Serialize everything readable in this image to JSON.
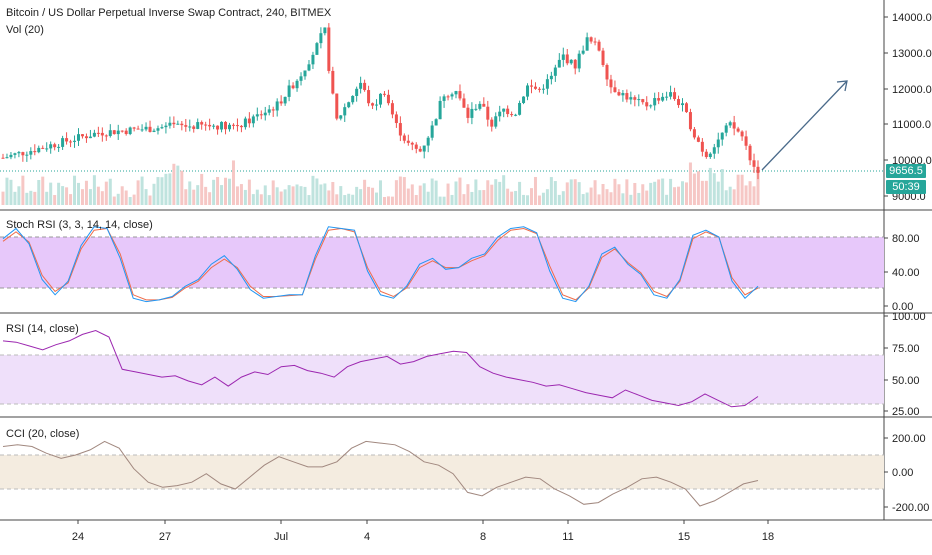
{
  "main_title": "Bitcoin / US Dollar Perpetual Inverse Swap Contract, 240, BITMEX",
  "volume_label": "Vol (20)",
  "price_badge": "9656.5",
  "countdown_badge": "50:39",
  "colors": {
    "up": "#26a69a",
    "down": "#ef5350",
    "stoch_k": "#2196f3",
    "stoch_d": "#ef6c4a",
    "rsi_line": "#9c27b0",
    "cci_line": "#a1887f",
    "band_rsi": "#efe0fa",
    "band_stoch": "#e7c8fa",
    "band_cci": "#f4ece0",
    "arrow": "#4a6a8a"
  },
  "panes": {
    "price": {
      "y_ticks": [
        "14000.0",
        "13000.0",
        "12000.0",
        "11000.0",
        "10000.0",
        "9000.0"
      ]
    },
    "stoch": {
      "label": "Stoch RSI (3, 3, 14, 14, close)",
      "y_ticks": [
        "80.00",
        "40.00",
        "0.00"
      ]
    },
    "rsi": {
      "label": "RSI (14, close)",
      "y_ticks": [
        "100.00",
        "75.00",
        "50.00",
        "25.00"
      ]
    },
    "cci": {
      "label": "CCI (20, close)",
      "y_ticks": [
        "200.00",
        "0.00",
        "-200.00"
      ]
    }
  },
  "x_axis": [
    "24",
    "27",
    "Jul",
    "4",
    "8",
    "11",
    "15",
    "18"
  ],
  "chart_data": [
    {
      "type": "candlestick",
      "title": "Bitcoin / US Dollar Perpetual Inverse Swap Contract, 240, BITMEX",
      "y_range": [
        9000,
        14000
      ],
      "x_labels": [
        "24",
        "27",
        "Jul",
        "4",
        "8",
        "11",
        "15",
        "18"
      ],
      "close_path": [
        [
          0,
          10050
        ],
        [
          8,
          10700
        ],
        [
          14,
          10850
        ],
        [
          20,
          10900
        ],
        [
          23,
          11400
        ],
        [
          25,
          12200
        ],
        [
          26.5,
          13000
        ],
        [
          27,
          13400
        ],
        [
          27.5,
          12000
        ],
        [
          28,
          11000
        ],
        [
          29,
          11500
        ],
        [
          30,
          12000
        ],
        [
          31,
          11300
        ],
        [
          32,
          11800
        ],
        [
          33,
          10900
        ],
        [
          34,
          10400
        ],
        [
          35,
          10200
        ],
        [
          36,
          10800
        ],
        [
          37,
          11700
        ],
        [
          38,
          11800
        ],
        [
          39,
          11100
        ],
        [
          40,
          11500
        ],
        [
          41,
          10900
        ],
        [
          42,
          11300
        ],
        [
          43,
          11200
        ],
        [
          44,
          11900
        ],
        [
          45,
          11800
        ],
        [
          46,
          12100
        ],
        [
          47,
          12700
        ],
        [
          48,
          12400
        ],
        [
          49,
          13100
        ],
        [
          50,
          12900
        ],
        [
          51,
          11900
        ],
        [
          52,
          11700
        ],
        [
          53,
          11500
        ],
        [
          54,
          11400
        ],
        [
          55,
          11600
        ],
        [
          56,
          11700
        ],
        [
          57,
          11400
        ],
        [
          58,
          10700
        ],
        [
          59,
          10100
        ],
        [
          60,
          10500
        ],
        [
          61,
          10900
        ],
        [
          62,
          10650
        ],
        [
          63,
          9850
        ],
        [
          63.4,
          9656.5
        ]
      ],
      "volume_label": "Vol (20)"
    },
    {
      "type": "line",
      "title": "Stoch RSI (3, 3, 14, 14, close)",
      "y_range": [
        0,
        100
      ],
      "series": [
        {
          "values": [
            78,
            90,
            72,
            30,
            12,
            28,
            70,
            92,
            90,
            55,
            8,
            4,
            6,
            10,
            22,
            30,
            48,
            58,
            42,
            18,
            8,
            10,
            12,
            12,
            58,
            92,
            90,
            88,
            40,
            12,
            8,
            22,
            48,
            55,
            42,
            44,
            55,
            60,
            80,
            90,
            92,
            85,
            40,
            8,
            4,
            22,
            60,
            68,
            48,
            36,
            12,
            8,
            30,
            82,
            88,
            80,
            28,
            8,
            22
          ]
        },
        {
          "values": [
            75,
            86,
            74,
            35,
            16,
            26,
            66,
            88,
            90,
            60,
            12,
            6,
            6,
            9,
            20,
            28,
            44,
            54,
            44,
            22,
            10,
            10,
            11,
            12,
            54,
            88,
            90,
            86,
            44,
            16,
            10,
            20,
            44,
            52,
            44,
            44,
            52,
            58,
            76,
            88,
            90,
            84,
            46,
            12,
            6,
            20,
            56,
            66,
            50,
            38,
            16,
            10,
            28,
            78,
            86,
            80,
            32,
            12,
            20
          ]
        }
      ]
    },
    {
      "type": "line",
      "title": "RSI (14, close)",
      "y_range": [
        20,
        100
      ],
      "series": [
        {
          "values": [
            80,
            79,
            76,
            73,
            77,
            80,
            85,
            88,
            83,
            58,
            56,
            54,
            52,
            53,
            49,
            46,
            52,
            45,
            52,
            56,
            54,
            60,
            61,
            57,
            55,
            52,
            60,
            64,
            66,
            68,
            62,
            64,
            68,
            70,
            72,
            71,
            60,
            55,
            52,
            50,
            48,
            45,
            46,
            43,
            40,
            38,
            36,
            42,
            38,
            34,
            32,
            30,
            33,
            39,
            34,
            29,
            30,
            37
          ]
        }
      ]
    },
    {
      "type": "line",
      "title": "CCI (20, close)",
      "y_range": [
        -260,
        260
      ],
      "series": [
        {
          "values": [
            150,
            160,
            150,
            110,
            80,
            100,
            130,
            180,
            140,
            20,
            -60,
            -90,
            -80,
            -60,
            -10,
            -70,
            -100,
            -30,
            40,
            90,
            60,
            30,
            30,
            60,
            140,
            180,
            170,
            160,
            120,
            60,
            40,
            -10,
            -120,
            -140,
            -90,
            -60,
            -30,
            -40,
            -100,
            -140,
            -190,
            -180,
            -130,
            -90,
            -40,
            -30,
            -60,
            -100,
            -200,
            -170,
            -120,
            -70,
            -50
          ]
        }
      ]
    }
  ]
}
